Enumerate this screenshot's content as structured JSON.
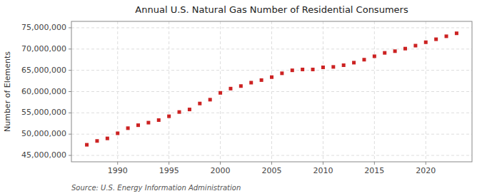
{
  "chart_data": {
    "type": "scatter",
    "title": "Annual U.S. Natural Gas Number of Residential Consumers",
    "ylabel": "Number of Elements",
    "annotations": [
      "Source: U.S. Energy Information Administration"
    ],
    "x": [
      1987,
      1988,
      1989,
      1990,
      1991,
      1992,
      1993,
      1994,
      1995,
      1996,
      1997,
      1998,
      1999,
      2000,
      2001,
      2002,
      2003,
      2004,
      2005,
      2006,
      2007,
      2008,
      2009,
      2010,
      2011,
      2012,
      2013,
      2014,
      2015,
      2016,
      2017,
      2018,
      2019,
      2020,
      2021,
      2022,
      2023
    ],
    "values": [
      47500000,
      48400000,
      49000000,
      50200000,
      51400000,
      52100000,
      52700000,
      53300000,
      54200000,
      55200000,
      55800000,
      57200000,
      58100000,
      59700000,
      60700000,
      61300000,
      62100000,
      62700000,
      63400000,
      64300000,
      65000000,
      65200000,
      65200000,
      65700000,
      65800000,
      66200000,
      66800000,
      67500000,
      68300000,
      69100000,
      69500000,
      70100000,
      70800000,
      71600000,
      72300000,
      73000000,
      73700000
    ],
    "color": "#cc2222",
    "marker": "square",
    "xlim": [
      1985.5,
      2024.5
    ],
    "xticks": [
      1990,
      1995,
      2000,
      2005,
      2010,
      2015,
      2020
    ],
    "ylim": [
      43500000,
      76500000
    ],
    "yticks": [
      {
        "value": 45000000,
        "label": "45,000,000"
      },
      {
        "value": 50000000,
        "label": "50,000,000"
      },
      {
        "value": 55000000,
        "label": "55,000,000"
      },
      {
        "value": 60000000,
        "label": "60,000,000"
      },
      {
        "value": 65000000,
        "label": "65,000,000"
      },
      {
        "value": 70000000,
        "label": "70,000,000"
      },
      {
        "value": 75000000,
        "label": "75,000,000"
      }
    ],
    "grid": true
  }
}
